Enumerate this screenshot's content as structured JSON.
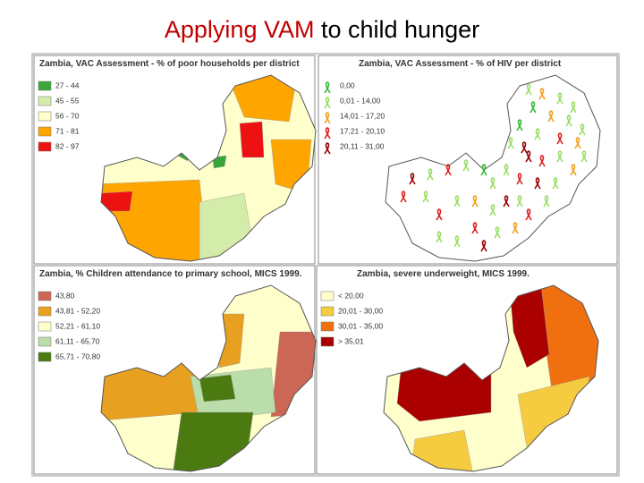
{
  "title": {
    "highlight": "Applying VAM",
    "rest": "to child hunger"
  },
  "panels": [
    {
      "title": "Zambia, VAC Assessment - % of poor households per district",
      "legend": [
        {
          "label": "27 - 44",
          "color": "#3aa63a"
        },
        {
          "label": "45 - 55",
          "color": "#d4ecaa"
        },
        {
          "label": "56 - 70",
          "color": "#ffffcc"
        },
        {
          "label": "71 - 81",
          "color": "#ffa500"
        },
        {
          "label": "82 - 97",
          "color": "#ee1111"
        }
      ]
    },
    {
      "title": "Zambia, VAC Assessment - % of HIV per district",
      "legend": [
        {
          "label": "0,00",
          "color": "#33bb33"
        },
        {
          "label": "0,01 - 14,00",
          "color": "#99dd66"
        },
        {
          "label": "14,01 - 17,20",
          "color": "#f0a020"
        },
        {
          "label": "17,21 - 20,10",
          "color": "#dd2222"
        },
        {
          "label": "20,11 - 31,00",
          "color": "#990000"
        }
      ]
    },
    {
      "title": "Zambia, % Children attendance to primary school, MICS 1999.",
      "legend": [
        {
          "label": "43,80",
          "color": "#cc6655"
        },
        {
          "label": "43,81 - 52,20",
          "color": "#e8a020"
        },
        {
          "label": "52,21 - 61,10",
          "color": "#ffffcc"
        },
        {
          "label": "61,11 - 65,70",
          "color": "#bbddaa"
        },
        {
          "label": "65,71 - 70,80",
          "color": "#4a7a10"
        }
      ]
    },
    {
      "title": "Zambia, severe underweight, MICS 1999.",
      "legend": [
        {
          "label": "< 20,00",
          "color": "#ffffcc"
        },
        {
          "label": "20,01 - 30,00",
          "color": "#f5cc40"
        },
        {
          "label": "30,01 - 35,00",
          "color": "#f07010"
        },
        {
          "label": "> 35,01",
          "color": "#aa0000"
        }
      ]
    }
  ]
}
